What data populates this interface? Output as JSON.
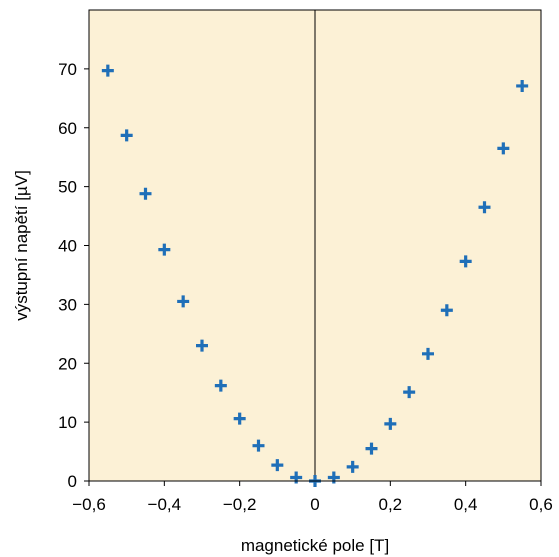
{
  "chart_data": {
    "type": "scatter",
    "xlabel": "magnetické pole [T]",
    "ylabel": "výstupní napětí [µV]",
    "xlim": [
      -0.6,
      0.6
    ],
    "ylim": [
      0,
      80
    ],
    "xticks": [
      -0.6,
      -0.4,
      -0.2,
      0,
      0.2,
      0.4,
      0.6
    ],
    "xtick_labels": [
      "−0,6",
      "−0,4",
      "−0,2",
      "0",
      "0,2",
      "0,4",
      "0,6"
    ],
    "yticks": [
      0,
      10,
      20,
      30,
      40,
      50,
      60,
      70
    ],
    "ytick_labels": [
      "0",
      "10",
      "20",
      "30",
      "40",
      "50",
      "60",
      "70"
    ],
    "grid": false,
    "marker": "plus",
    "colors": {
      "plot_background": "#fcf1d6",
      "marker": "#1f6fb8",
      "axis": "#000000"
    },
    "series": [
      {
        "x": [
          -0.55,
          -0.5,
          -0.45,
          -0.4,
          -0.35,
          -0.3,
          -0.25,
          -0.2,
          -0.15,
          -0.1,
          -0.05,
          0,
          0.05,
          0.1,
          0.15,
          0.2,
          0.25,
          0.3,
          0.35,
          0.4,
          0.45,
          0.5,
          0.55
        ],
        "y": [
          69.7,
          58.7,
          48.8,
          39.3,
          30.5,
          23.0,
          16.2,
          10.6,
          6.0,
          2.7,
          0.6,
          0.0,
          0.6,
          2.4,
          5.5,
          9.7,
          15.1,
          21.6,
          29.0,
          37.3,
          46.5,
          56.5,
          67.1
        ]
      }
    ]
  }
}
